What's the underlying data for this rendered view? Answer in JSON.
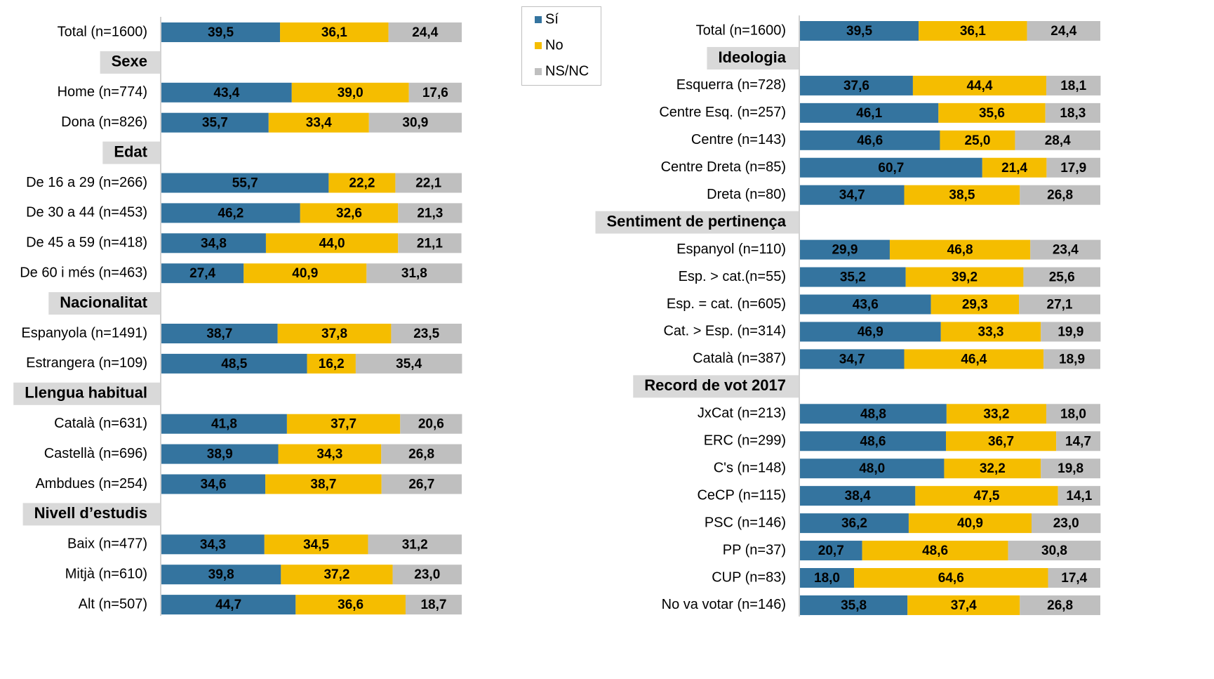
{
  "chart_data": [
    {
      "type": "stacked-bar-horizontal",
      "xlim": [
        0,
        100
      ],
      "legend": true,
      "categories": [
        "Total (n=1600)",
        "Sexe",
        "Home (n=774)",
        "Dona (n=826)",
        "Edat",
        "De 16 a 29 (n=266)",
        "De 30 a 44 (n=453)",
        "De 45 a 59 (n=418)",
        "De 60 i més (n=463)",
        "Nacionalitat",
        "Espanyola (n=1491)",
        "Estrangera (n=109)",
        "Llengua habitual",
        "Català (n=631)",
        "Castellà (n=696)",
        "Ambdues (n=254)",
        "Nivell d’estudis",
        "Baix (n=477)",
        "Mitjà (n=610)",
        "Alt (n=507)"
      ],
      "series": [
        {
          "name": "Sí",
          "color": "#34749f",
          "values": [
            39.5,
            null,
            43.4,
            35.7,
            null,
            55.7,
            46.2,
            34.8,
            27.4,
            null,
            38.7,
            48.5,
            null,
            41.8,
            38.9,
            34.6,
            null,
            34.3,
            39.8,
            44.7
          ],
          "value_labels": [
            "39,5",
            null,
            "43,4",
            "35,7",
            null,
            "55,7",
            "46,2",
            "34,8",
            "27,4",
            null,
            "38,7",
            "48,5",
            null,
            "41,8",
            "38,9",
            "34,6",
            null,
            "34,3",
            "39,8",
            "44,7"
          ]
        },
        {
          "name": "No",
          "color": "#f5bd00",
          "values": [
            36.1,
            null,
            39.0,
            33.4,
            null,
            22.2,
            32.6,
            44.0,
            40.9,
            null,
            37.8,
            16.2,
            null,
            37.7,
            34.3,
            38.7,
            null,
            34.5,
            37.2,
            36.6
          ],
          "value_labels": [
            "36,1",
            null,
            "39,0",
            "33,4",
            null,
            "22,2",
            "32,6",
            "44,0",
            "40,9",
            null,
            "37,8",
            "16,2",
            null,
            "37,7",
            "34,3",
            "38,7",
            null,
            "34,5",
            "37,2",
            "36,6"
          ]
        },
        {
          "name": "NS/NC",
          "color": "#bfbfbf",
          "values": [
            24.4,
            null,
            17.6,
            30.9,
            null,
            22.1,
            21.3,
            21.1,
            31.8,
            null,
            23.5,
            35.4,
            null,
            20.6,
            26.8,
            26.7,
            null,
            31.2,
            23.0,
            18.7
          ],
          "value_labels": [
            "24,4",
            null,
            "17,6",
            "30,9",
            null,
            "22,1",
            "21,3",
            "21,1",
            "31,8",
            null,
            "23,5",
            "35,4",
            null,
            "20,6",
            "26,8",
            "26,7",
            null,
            "31,2",
            "23,0",
            "18,7"
          ]
        }
      ]
    },
    {
      "type": "stacked-bar-horizontal",
      "xlim": [
        0,
        100
      ],
      "categories": [
        "Total (n=1600)",
        "Ideologia",
        "Esquerra (n=728)",
        "Centre Esq. (n=257)",
        "Centre (n=143)",
        "Centre Dreta (n=85)",
        "Dreta (n=80)",
        "Sentiment de pertinença",
        "Espanyol (n=110)",
        "Esp. > cat.(n=55)",
        "Esp. = cat. (n=605)",
        "Cat. > Esp. (n=314)",
        "Català (n=387)",
        "Record de vot 2017",
        "JxCat (n=213)",
        "ERC (n=299)",
        "C's (n=148)",
        "CeCP (n=115)",
        "PSC (n=146)",
        "PP (n=37)",
        "CUP (n=83)",
        "No va votar (n=146)"
      ],
      "series": [
        {
          "name": "Sí",
          "color": "#34749f",
          "values": [
            39.5,
            null,
            37.6,
            46.1,
            46.6,
            60.7,
            34.7,
            null,
            29.9,
            35.2,
            43.6,
            46.9,
            34.7,
            null,
            48.8,
            48.6,
            48.0,
            38.4,
            36.2,
            20.7,
            18.0,
            35.8
          ],
          "value_labels": [
            "39,5",
            null,
            "37,6",
            "46,1",
            "46,6",
            "60,7",
            "34,7",
            null,
            "29,9",
            "35,2",
            "43,6",
            "46,9",
            "34,7",
            null,
            "48,8",
            "48,6",
            "48,0",
            "38,4",
            "36,2",
            "20,7",
            "18,0",
            "35,8"
          ]
        },
        {
          "name": "No",
          "color": "#f5bd00",
          "values": [
            36.1,
            null,
            44.4,
            35.6,
            25.0,
            21.4,
            38.5,
            null,
            46.8,
            39.2,
            29.3,
            33.3,
            46.4,
            null,
            33.2,
            36.7,
            32.2,
            47.5,
            40.9,
            48.6,
            64.6,
            37.4
          ],
          "value_labels": [
            "36,1",
            null,
            "44,4",
            "35,6",
            "25,0",
            "21,4",
            "38,5",
            null,
            "46,8",
            "39,2",
            "29,3",
            "33,3",
            "46,4",
            null,
            "33,2",
            "36,7",
            "32,2",
            "47,5",
            "40,9",
            "48,6",
            "64,6",
            "37,4"
          ]
        },
        {
          "name": "NS/NC",
          "color": "#bfbfbf",
          "values": [
            24.4,
            null,
            18.1,
            18.3,
            28.4,
            17.9,
            26.8,
            null,
            23.4,
            25.6,
            27.1,
            19.9,
            18.9,
            null,
            18.0,
            14.7,
            19.8,
            14.1,
            23.0,
            30.8,
            17.4,
            26.8
          ],
          "value_labels": [
            "24,4",
            null,
            "18,1",
            "18,3",
            "28,4",
            "17,9",
            "26,8",
            null,
            "23,4",
            "25,6",
            "27,1",
            "19,9",
            "18,9",
            null,
            "18,0",
            "14,7",
            "19,8",
            "14,1",
            "23,0",
            "30,8",
            "17,4",
            "26,8"
          ]
        }
      ]
    }
  ]
}
